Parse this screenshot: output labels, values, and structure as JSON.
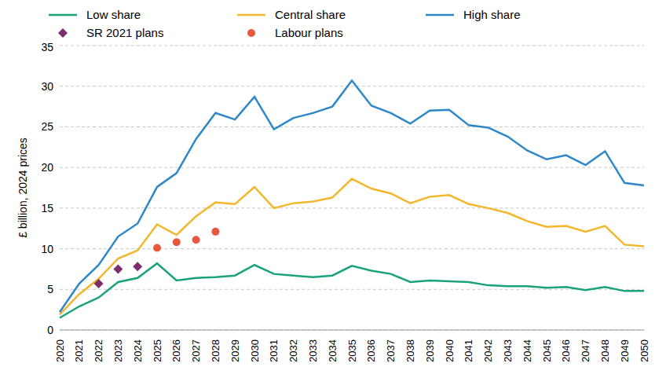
{
  "chart_data": {
    "type": "line",
    "y_label": "£ billion, 2024 prices",
    "categories": [
      "2020",
      "2021",
      "2022",
      "2023",
      "2024",
      "2025",
      "2026",
      "2027",
      "2028",
      "2029",
      "2030",
      "2031",
      "2032",
      "2033",
      "2034",
      "2035",
      "2036",
      "2037",
      "2038",
      "2039",
      "2040",
      "2041",
      "2042",
      "2043",
      "2044",
      "2045",
      "2046",
      "2047",
      "2048",
      "2049",
      "2050"
    ],
    "ylim": [
      0,
      35
    ],
    "yticks": [
      0,
      5,
      10,
      15,
      20,
      25,
      30,
      35
    ],
    "grid": true,
    "legend": "top",
    "series": [
      {
        "name": "Low share",
        "type": "line",
        "color": "#1aa37a",
        "values": [
          1.5,
          2.9,
          4.0,
          5.9,
          6.4,
          8.2,
          6.1,
          6.4,
          6.5,
          6.7,
          8.0,
          6.9,
          6.7,
          6.5,
          6.7,
          7.9,
          7.3,
          6.9,
          5.9,
          6.1,
          6.0,
          5.9,
          5.5,
          5.4,
          5.4,
          5.2,
          5.3,
          4.9,
          5.3,
          4.8,
          4.8
        ]
      },
      {
        "name": "Central share",
        "type": "line",
        "color": "#f2b72c",
        "values": [
          1.9,
          4.4,
          6.3,
          8.8,
          9.8,
          13.0,
          11.7,
          14.0,
          15.7,
          15.5,
          17.6,
          15.0,
          15.6,
          15.8,
          16.3,
          18.6,
          17.4,
          16.8,
          15.6,
          16.4,
          16.6,
          15.5,
          15.0,
          14.4,
          13.4,
          12.7,
          12.8,
          12.1,
          12.8,
          10.5,
          10.3
        ]
      },
      {
        "name": "High share",
        "type": "line",
        "color": "#2d87c8",
        "values": [
          2.2,
          5.7,
          8.0,
          11.5,
          13.1,
          17.6,
          19.3,
          23.5,
          26.7,
          25.9,
          28.7,
          24.7,
          26.1,
          26.7,
          27.5,
          30.7,
          27.6,
          26.7,
          25.4,
          27.0,
          27.1,
          25.2,
          24.9,
          23.8,
          22.1,
          21.0,
          21.5,
          20.3,
          22.0,
          18.1,
          17.8
        ]
      },
      {
        "name": "SR 2021 plans",
        "type": "scatter",
        "marker": "diamond",
        "color": "#7b2d6e",
        "values": [
          null,
          null,
          5.7,
          7.5,
          7.8,
          null,
          null,
          null,
          null,
          null,
          null,
          null,
          null,
          null,
          null,
          null,
          null,
          null,
          null,
          null,
          null,
          null,
          null,
          null,
          null,
          null,
          null,
          null,
          null,
          null,
          null
        ]
      },
      {
        "name": "Labour plans",
        "type": "scatter",
        "marker": "circle",
        "color": "#e8583e",
        "values": [
          null,
          null,
          null,
          null,
          null,
          10.1,
          10.8,
          11.1,
          12.1,
          null,
          null,
          null,
          null,
          null,
          null,
          null,
          null,
          null,
          null,
          null,
          null,
          null,
          null,
          null,
          null,
          null,
          null,
          null,
          null,
          null,
          null
        ]
      }
    ]
  }
}
